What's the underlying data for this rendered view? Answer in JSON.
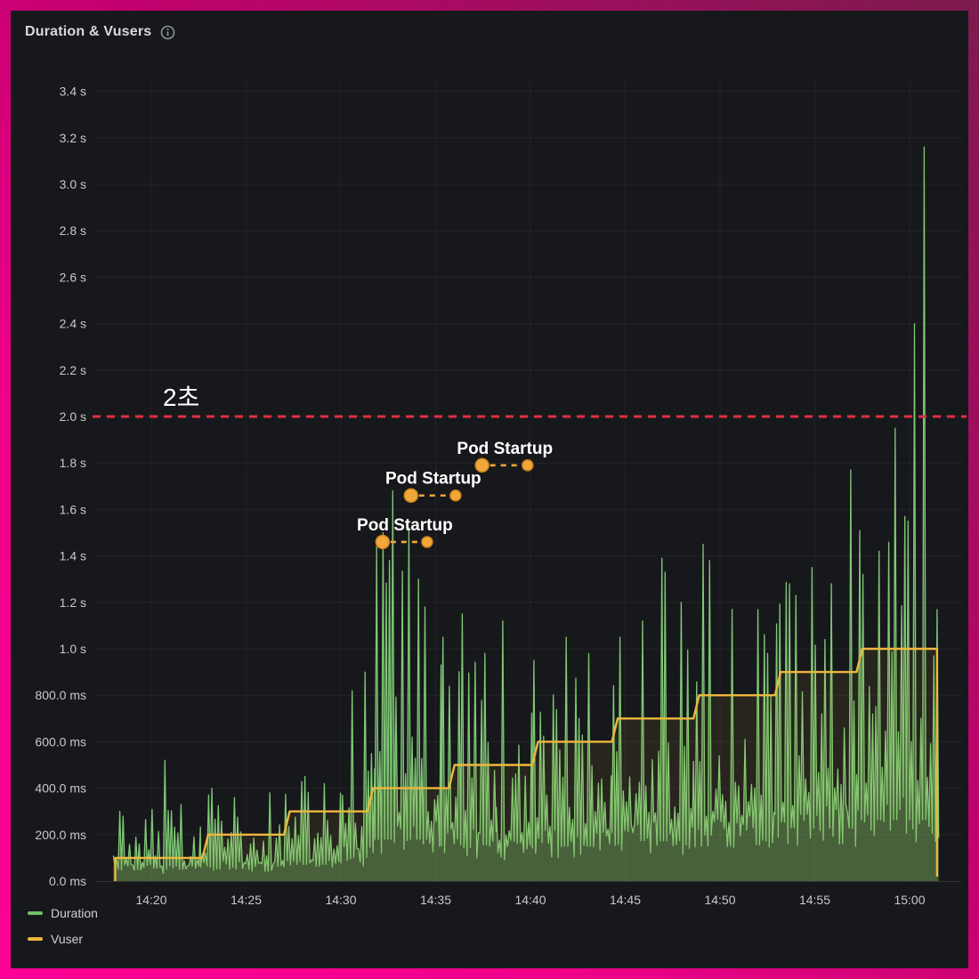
{
  "panel": {
    "title": "Duration & Vusers",
    "info_icon": "info-circle-icon"
  },
  "colors": {
    "panel_bg": "#17181b",
    "border_gradient_bright": "#ff0096",
    "border_gradient_dark": "#7c1b4e",
    "duration_green": "#73bf69",
    "duration_green_line": "#7fc876",
    "vuser_yellow": "#eeb73d",
    "threshold_red": "#e02f44",
    "annotation_amber": "#f2a73b",
    "tick_text": "#c8c9cb",
    "title_text": "#d8d9da"
  },
  "legend": {
    "items": [
      {
        "label": "Duration",
        "color": "#73bf69"
      },
      {
        "label": "Vuser",
        "color": "#eeb73d"
      }
    ]
  },
  "chart_data": {
    "type": "line",
    "title": "Duration & Vusers",
    "grid": true,
    "legend_position": "bottom-left",
    "x_axis": {
      "ticks": [
        "14:20",
        "14:25",
        "14:30",
        "14:35",
        "14:40",
        "14:45",
        "14:50",
        "14:55",
        "15:00"
      ],
      "tick_minutes": [
        20,
        25,
        30,
        35,
        40,
        45,
        50,
        55,
        60
      ],
      "visible_range_min": [
        17.0,
        62.3
      ]
    },
    "y_axis": {
      "ticks": [
        "3.4 s",
        "3.2 s",
        "3.0 s",
        "2.8 s",
        "2.6 s",
        "2.4 s",
        "2.2 s",
        "2.0 s",
        "1.8 s",
        "1.6 s",
        "1.4 s",
        "1.2 s",
        "1.0 s",
        "800.0 ms",
        "600.0 ms",
        "400.0 ms",
        "200.0 ms",
        "0.0 ms"
      ],
      "tick_values_s": [
        3.4,
        3.2,
        3.0,
        2.8,
        2.6,
        2.4,
        2.2,
        2.0,
        1.8,
        1.6,
        1.4,
        1.2,
        1.0,
        0.8,
        0.6,
        0.4,
        0.2,
        0.0
      ],
      "range_s": [
        0.0,
        3.4
      ]
    },
    "threshold": {
      "label": "2초",
      "value_s": 2.0,
      "color": "#e02f44",
      "style": "dashed"
    },
    "annotations": [
      {
        "label": "Pod Startup",
        "start_min": 32.2,
        "end_min": 34.55,
        "value_s": 1.46
      },
      {
        "label": "Pod Startup",
        "start_min": 33.7,
        "end_min": 36.05,
        "value_s": 1.66
      },
      {
        "label": "Pod Startup",
        "start_min": 37.45,
        "end_min": 39.85,
        "value_s": 1.79
      }
    ],
    "series": [
      {
        "name": "Duration",
        "color": "#73bf69",
        "style": "noisy-area",
        "start_min": 18.0,
        "end_min": 61.6,
        "envelope": [
          {
            "t0": 18.0,
            "t1": 22.6,
            "base_s": 0.085,
            "spike_amp_s": 0.22
          },
          {
            "t0": 22.6,
            "t1": 27.0,
            "base_s": 0.1,
            "spike_amp_s": 0.26
          },
          {
            "t0": 27.0,
            "t1": 30.0,
            "base_s": 0.12,
            "spike_amp_s": 0.34
          },
          {
            "t0": 30.0,
            "t1": 31.8,
            "base_s": 0.17,
            "spike_amp_s": 0.6
          },
          {
            "t0": 31.8,
            "t1": 35.3,
            "base_s": 0.3,
            "spike_amp_s": 1.1
          },
          {
            "t0": 35.3,
            "t1": 38.2,
            "base_s": 0.26,
            "spike_amp_s": 0.72
          },
          {
            "t0": 38.2,
            "t1": 40.1,
            "base_s": 0.21,
            "spike_amp_s": 0.55
          },
          {
            "t0": 40.1,
            "t1": 44.3,
            "base_s": 0.25,
            "spike_amp_s": 0.62
          },
          {
            "t0": 44.3,
            "t1": 48.6,
            "base_s": 0.29,
            "spike_amp_s": 0.8
          },
          {
            "t0": 48.6,
            "t1": 52.9,
            "base_s": 0.33,
            "spike_amp_s": 0.88
          },
          {
            "t0": 52.9,
            "t1": 57.2,
            "base_s": 0.38,
            "spike_amp_s": 0.95
          },
          {
            "t0": 57.2,
            "t1": 61.6,
            "base_s": 0.44,
            "spike_amp_s": 1.15
          }
        ],
        "notable_spikes_min_s": [
          [
            18.3,
            0.3
          ],
          [
            20.75,
            0.52
          ],
          [
            21.6,
            0.33
          ],
          [
            23.3,
            0.4
          ],
          [
            24.5,
            0.36
          ],
          [
            26.4,
            0.38
          ],
          [
            28.2,
            0.45
          ],
          [
            29.3,
            0.42
          ],
          [
            30.8,
            0.82
          ],
          [
            31.4,
            0.9
          ],
          [
            32.1,
            1.44
          ],
          [
            32.55,
            1.5
          ],
          [
            32.9,
            1.38
          ],
          [
            33.0,
            1.68
          ],
          [
            33.9,
            1.52
          ],
          [
            34.3,
            1.3
          ],
          [
            34.7,
            1.18
          ],
          [
            35.8,
            1.05
          ],
          [
            36.8,
            1.15
          ],
          [
            37.9,
            0.98
          ],
          [
            38.9,
            1.12
          ],
          [
            40.6,
            0.95
          ],
          [
            42.4,
            1.05
          ],
          [
            43.6,
            0.98
          ],
          [
            45.3,
            1.05
          ],
          [
            46.4,
            1.12
          ],
          [
            47.45,
            1.39
          ],
          [
            47.7,
            1.33
          ],
          [
            48.5,
            1.2
          ],
          [
            49.6,
            1.45
          ],
          [
            50.0,
            1.38
          ],
          [
            51.2,
            1.17
          ],
          [
            52.9,
            1.06
          ],
          [
            54.2,
            1.28
          ],
          [
            54.6,
            1.23
          ],
          [
            55.5,
            1.35
          ],
          [
            56.5,
            1.28
          ],
          [
            57.4,
            1.77
          ],
          [
            58.2,
            1.32
          ],
          [
            59.0,
            1.42
          ],
          [
            59.85,
            1.95
          ],
          [
            60.5,
            1.55
          ],
          [
            60.9,
            2.4
          ],
          [
            61.35,
            3.16
          ]
        ]
      },
      {
        "name": "Vuser",
        "color": "#eeb73d",
        "style": "step",
        "steps": [
          {
            "from_min": 18.1,
            "to_min": 22.7,
            "axis_value_s": 0.1
          },
          {
            "from_min": 22.7,
            "to_min": 27.0,
            "axis_value_s": 0.2
          },
          {
            "from_min": 27.0,
            "to_min": 31.4,
            "axis_value_s": 0.3
          },
          {
            "from_min": 31.4,
            "to_min": 35.7,
            "axis_value_s": 0.4
          },
          {
            "from_min": 35.7,
            "to_min": 40.1,
            "axis_value_s": 0.5
          },
          {
            "from_min": 40.1,
            "to_min": 44.3,
            "axis_value_s": 0.6
          },
          {
            "from_min": 44.3,
            "to_min": 48.6,
            "axis_value_s": 0.7
          },
          {
            "from_min": 48.6,
            "to_min": 52.9,
            "axis_value_s": 0.8
          },
          {
            "from_min": 52.9,
            "to_min": 57.2,
            "axis_value_s": 0.9
          },
          {
            "from_min": 57.2,
            "to_min": 61.45,
            "axis_value_s": 1.0
          }
        ]
      }
    ]
  }
}
